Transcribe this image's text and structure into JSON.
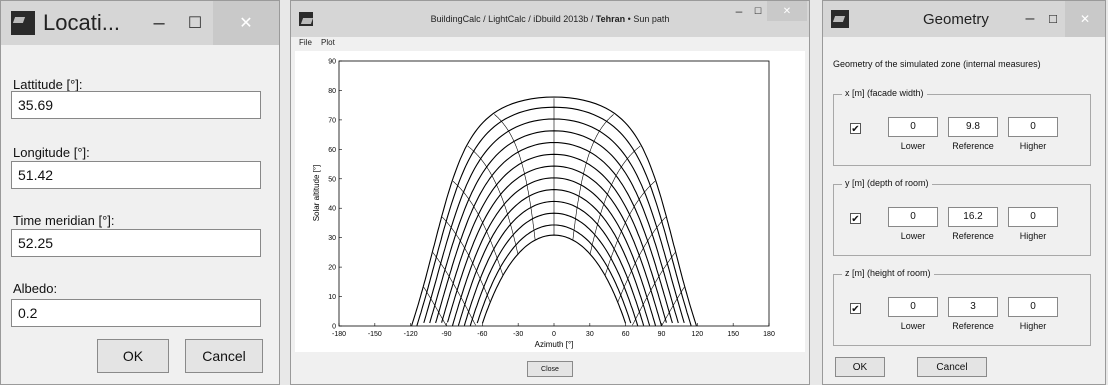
{
  "location": {
    "title": "Locati...",
    "fields": [
      {
        "label": "Lattitude [°]:",
        "value": "35.69"
      },
      {
        "label": "Longitude [°]:",
        "value": "51.42"
      },
      {
        "label": "Time meridian [°]:",
        "value": "52.25"
      },
      {
        "label": "Albedo:",
        "value": "0.2"
      }
    ],
    "ok_label": "OK",
    "cancel_label": "Cancel"
  },
  "sunpath": {
    "title_app": "BuildingCalc / LightCalc / iDbuild 2013b",
    "title_city": "Tehran",
    "title_sep": "•",
    "title_view": "Sun path",
    "menu": [
      "File",
      "Plot"
    ],
    "close_label": "Close"
  },
  "geometry": {
    "title": "Geometry",
    "heading": "Geometry of the simulated zone (internal measures)",
    "groups": [
      {
        "legend": "x [m] (facade width)",
        "checked": "✔",
        "lower": "0",
        "reference": "9.8",
        "higher": "0"
      },
      {
        "legend": "y [m] (depth of room)",
        "checked": "✔",
        "lower": "0",
        "reference": "16.2",
        "higher": "0"
      },
      {
        "legend": "z [m] (height of room)",
        "checked": "✔",
        "lower": "0",
        "reference": "3",
        "higher": "0"
      }
    ],
    "col_labels": {
      "lower": "Lower",
      "reference": "Reference",
      "higher": "Higher"
    },
    "ok_label": "OK",
    "cancel_label": "Cancel"
  },
  "chart_data": {
    "type": "line",
    "title": "",
    "xlabel": "Azimuth [°]",
    "ylabel": "Solar altitude [°]",
    "xlim": [
      -180,
      180
    ],
    "ylim": [
      0,
      90
    ],
    "xticks": [
      -180,
      -150,
      -120,
      -90,
      -60,
      -30,
      0,
      30,
      60,
      90,
      120,
      150,
      180
    ],
    "yticks": [
      0,
      10,
      20,
      30,
      40,
      50,
      60,
      70,
      80,
      90
    ],
    "latitude": 35.69,
    "series": [
      {
        "declination": 23.45
      },
      {
        "declination": 20
      },
      {
        "declination": 16
      },
      {
        "declination": 12
      },
      {
        "declination": 8
      },
      {
        "declination": 4
      },
      {
        "declination": 0
      },
      {
        "declination": -4
      },
      {
        "declination": -8
      },
      {
        "declination": -12
      },
      {
        "declination": -16
      },
      {
        "declination": -20
      },
      {
        "declination": -23.45
      }
    ],
    "hours": [
      6,
      7,
      8,
      9,
      10,
      11,
      12,
      13,
      14,
      15,
      16,
      17,
      18
    ],
    "grid": false
  },
  "colors": {
    "titlebar": "#d6d6d6",
    "window": "#f0f0f0",
    "close_button": "#c9c9c9"
  }
}
